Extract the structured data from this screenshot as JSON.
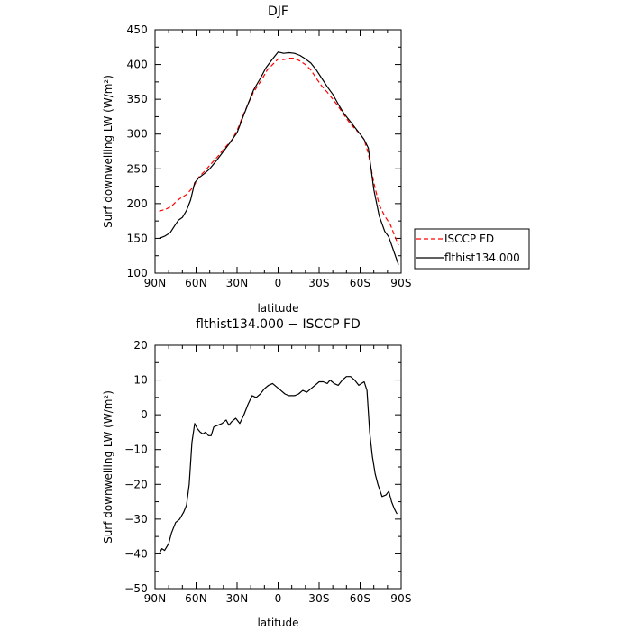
{
  "chart_data": [
    {
      "type": "line",
      "title": "DJF",
      "xlabel": "latitude",
      "ylabel": "Surf downwelling LW (W/m²)",
      "xlim": [
        90,
        -90
      ],
      "ylim": [
        100,
        450
      ],
      "x_ticks": [
        90,
        60,
        30,
        0,
        -30,
        -60,
        -90
      ],
      "x_tick_labels": [
        "90N",
        "60N",
        "30N",
        "0",
        "30S",
        "60S",
        "90S"
      ],
      "y_ticks": [
        100,
        150,
        200,
        250,
        300,
        350,
        400,
        450
      ],
      "y_tick_labels": [
        "100",
        "150",
        "200",
        "250",
        "300",
        "350",
        "400",
        "450"
      ],
      "grid": false,
      "legend_position": "outside-right",
      "series": [
        {
          "name": "ISCCP FD",
          "style": "dashed",
          "color": "#ff0000",
          "points": [
            [
              87,
              189
            ],
            [
              82,
              192
            ],
            [
              78,
              196
            ],
            [
              75,
              202
            ],
            [
              72,
              207
            ],
            [
              67,
              213
            ],
            [
              62,
              224
            ],
            [
              58,
              238
            ],
            [
              53,
              248
            ],
            [
              50,
              255
            ],
            [
              44,
              268
            ],
            [
              40,
              278
            ],
            [
              34,
              291
            ],
            [
              30,
              305
            ],
            [
              26,
              325
            ],
            [
              22,
              343
            ],
            [
              18,
              360
            ],
            [
              12,
              378
            ],
            [
              8,
              392
            ],
            [
              4,
              400
            ],
            [
              0,
              408
            ],
            [
              -4,
              407
            ],
            [
              -8,
              409
            ],
            [
              -12,
              409
            ],
            [
              -16,
              405
            ],
            [
              -20,
              400
            ],
            [
              -24,
              392
            ],
            [
              -28,
              380
            ],
            [
              -32,
              369
            ],
            [
              -36,
              360
            ],
            [
              -40,
              350
            ],
            [
              -44,
              340
            ],
            [
              -48,
              328
            ],
            [
              -52,
              317
            ],
            [
              -56,
              308
            ],
            [
              -60,
              300
            ],
            [
              -63,
              292
            ],
            [
              -66,
              272
            ],
            [
              -70,
              230
            ],
            [
              -74,
              198
            ],
            [
              -78,
              182
            ],
            [
              -82,
              170
            ],
            [
              -85,
              155
            ],
            [
              -88,
              140
            ]
          ]
        },
        {
          "name": "flthist134.000",
          "style": "solid",
          "color": "#000000",
          "points": [
            [
              87,
              150
            ],
            [
              83,
              153
            ],
            [
              79,
              158
            ],
            [
              76,
              167
            ],
            [
              73,
              176
            ],
            [
              70,
              180
            ],
            [
              67,
              190
            ],
            [
              64,
              205
            ],
            [
              61,
              230
            ],
            [
              58,
              237
            ],
            [
              54,
              243
            ],
            [
              50,
              250
            ],
            [
              45,
              262
            ],
            [
              40,
              275
            ],
            [
              35,
              288
            ],
            [
              30,
              302
            ],
            [
              26,
              323
            ],
            [
              22,
              343
            ],
            [
              18,
              363
            ],
            [
              13,
              380
            ],
            [
              9,
              395
            ],
            [
              4,
              408
            ],
            [
              0,
              418
            ],
            [
              -4,
              416
            ],
            [
              -8,
              417
            ],
            [
              -12,
              416
            ],
            [
              -16,
              413
            ],
            [
              -20,
              408
            ],
            [
              -24,
              402
            ],
            [
              -28,
              392
            ],
            [
              -32,
              380
            ],
            [
              -36,
              368
            ],
            [
              -40,
              357
            ],
            [
              -44,
              343
            ],
            [
              -48,
              330
            ],
            [
              -52,
              320
            ],
            [
              -56,
              310
            ],
            [
              -60,
              300
            ],
            [
              -63,
              292
            ],
            [
              -66,
              280
            ],
            [
              -70,
              220
            ],
            [
              -74,
              182
            ],
            [
              -78,
              160
            ],
            [
              -81,
              152
            ],
            [
              -84,
              135
            ],
            [
              -88,
              112
            ]
          ]
        }
      ]
    },
    {
      "type": "line",
      "title": "flthist134.000 − ISCCP FD",
      "xlabel": "latitude",
      "ylabel": "Surf downwelling LW (W/m²)",
      "xlim": [
        90,
        -90
      ],
      "ylim": [
        -50,
        20
      ],
      "x_ticks": [
        90,
        60,
        30,
        0,
        -30,
        -60,
        -90
      ],
      "x_tick_labels": [
        "90N",
        "60N",
        "30N",
        "0",
        "30S",
        "60S",
        "90S"
      ],
      "y_ticks": [
        -50,
        -40,
        -30,
        -20,
        -10,
        0,
        10,
        20
      ],
      "y_tick_labels": [
        "−50",
        "−40",
        "−30",
        "−20",
        "−10",
        "0",
        "10",
        "20"
      ],
      "grid": false,
      "series": [
        {
          "name": "",
          "style": "solid",
          "color": "#000000",
          "points": [
            [
              87,
              -40
            ],
            [
              85,
              -38.5
            ],
            [
              83,
              -39
            ],
            [
              80,
              -37
            ],
            [
              78,
              -34
            ],
            [
              75,
              -31
            ],
            [
              72,
              -30
            ],
            [
              69,
              -28
            ],
            [
              67,
              -26
            ],
            [
              65,
              -20
            ],
            [
              63,
              -8
            ],
            [
              61,
              -2.5
            ],
            [
              59,
              -4
            ],
            [
              57,
              -5
            ],
            [
              55,
              -5.5
            ],
            [
              53,
              -5
            ],
            [
              51,
              -6
            ],
            [
              49,
              -6
            ],
            [
              47,
              -3.5
            ],
            [
              44,
              -3
            ],
            [
              41,
              -2.5
            ],
            [
              38,
              -1.5
            ],
            [
              36,
              -3
            ],
            [
              34,
              -2
            ],
            [
              31,
              -1
            ],
            [
              28,
              -2.5
            ],
            [
              25,
              0
            ],
            [
              22,
              3
            ],
            [
              19,
              5.5
            ],
            [
              16,
              5
            ],
            [
              13,
              6
            ],
            [
              10,
              7.5
            ],
            [
              7,
              8.5
            ],
            [
              4,
              9
            ],
            [
              1,
              8
            ],
            [
              -2,
              7
            ],
            [
              -5,
              6
            ],
            [
              -8,
              5.5
            ],
            [
              -12,
              5.5
            ],
            [
              -15,
              6
            ],
            [
              -18,
              7
            ],
            [
              -21,
              6.5
            ],
            [
              -24,
              7.5
            ],
            [
              -27,
              8.5
            ],
            [
              -30,
              9.5
            ],
            [
              -33,
              9.5
            ],
            [
              -36,
              9
            ],
            [
              -38,
              10
            ],
            [
              -41,
              9
            ],
            [
              -44,
              8.5
            ],
            [
              -47,
              10
            ],
            [
              -50,
              11
            ],
            [
              -53,
              11
            ],
            [
              -56,
              10
            ],
            [
              -59,
              8.5
            ],
            [
              -61,
              9
            ],
            [
              -63,
              9.5
            ],
            [
              -65,
              7
            ],
            [
              -67,
              -5
            ],
            [
              -69,
              -12
            ],
            [
              -71,
              -17
            ],
            [
              -73,
              -20
            ],
            [
              -76,
              -23.5
            ],
            [
              -79,
              -23
            ],
            [
              -81,
              -22
            ],
            [
              -83,
              -25
            ],
            [
              -85,
              -27
            ],
            [
              -87,
              -28.5
            ]
          ]
        }
      ]
    }
  ]
}
